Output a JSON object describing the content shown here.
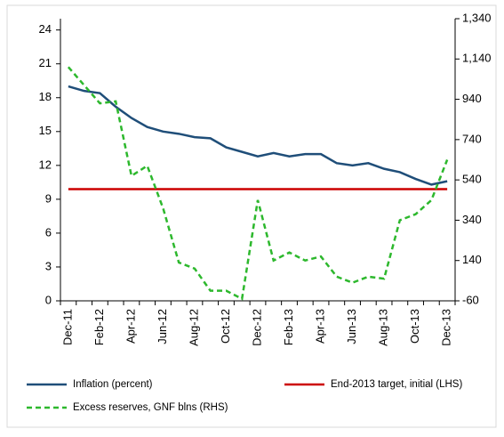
{
  "chart_data": {
    "type": "line",
    "categories": [
      "Dec-11",
      null,
      "Feb-12",
      null,
      "Apr-12",
      null,
      "Jun-12",
      null,
      "Aug-12",
      null,
      "Oct-12",
      null,
      "Dec-12",
      null,
      "Feb-13",
      null,
      "Apr-13",
      null,
      "Jun-13",
      null,
      "Aug-13",
      null,
      "Oct-13",
      null,
      "Dec-13"
    ],
    "series": [
      {
        "name": "Inflation (percent)",
        "color": "#1f4e79",
        "axis": "y",
        "dashed": false,
        "values": [
          19.0,
          18.6,
          18.4,
          17.2,
          16.2,
          15.4,
          15.0,
          14.8,
          14.5,
          14.4,
          13.6,
          13.2,
          12.8,
          13.1,
          12.8,
          13.0,
          13.0,
          12.2,
          12.0,
          12.2,
          11.7,
          11.4,
          10.8,
          10.3,
          10.6
        ]
      },
      {
        "name": "End-2013 target, initial (LHS)",
        "color": "#cc0000",
        "axis": "y",
        "dashed": false,
        "values": [
          9.9,
          9.9,
          9.9,
          9.9,
          9.9,
          9.9,
          9.9,
          9.9,
          9.9,
          9.9,
          9.9,
          9.9,
          9.9,
          9.9,
          9.9,
          9.9,
          9.9,
          9.9,
          9.9,
          9.9,
          9.9,
          9.9,
          9.9,
          9.9,
          9.9
        ]
      },
      {
        "name": "Excess reserves, GNF blns (RHS)",
        "color": "#2db82d",
        "axis": "y2",
        "dashed": true,
        "values": [
          1100,
          1010,
          920,
          930,
          560,
          610,
          400,
          130,
          100,
          -10,
          -10,
          -50,
          440,
          140,
          180,
          140,
          160,
          60,
          30,
          60,
          50,
          340,
          370,
          440,
          640
        ]
      }
    ],
    "ylim": [
      0,
      25
    ],
    "yticks": [
      0,
      3,
      6,
      9,
      12,
      15,
      18,
      21,
      24
    ],
    "y2lim": [
      -60,
      1340
    ],
    "y2ticks": [
      -60,
      140,
      340,
      540,
      740,
      940,
      {
        "value": 1140,
        "label": "1,140"
      },
      {
        "value": 1340,
        "label": "1,340"
      }
    ],
    "grid": false
  }
}
